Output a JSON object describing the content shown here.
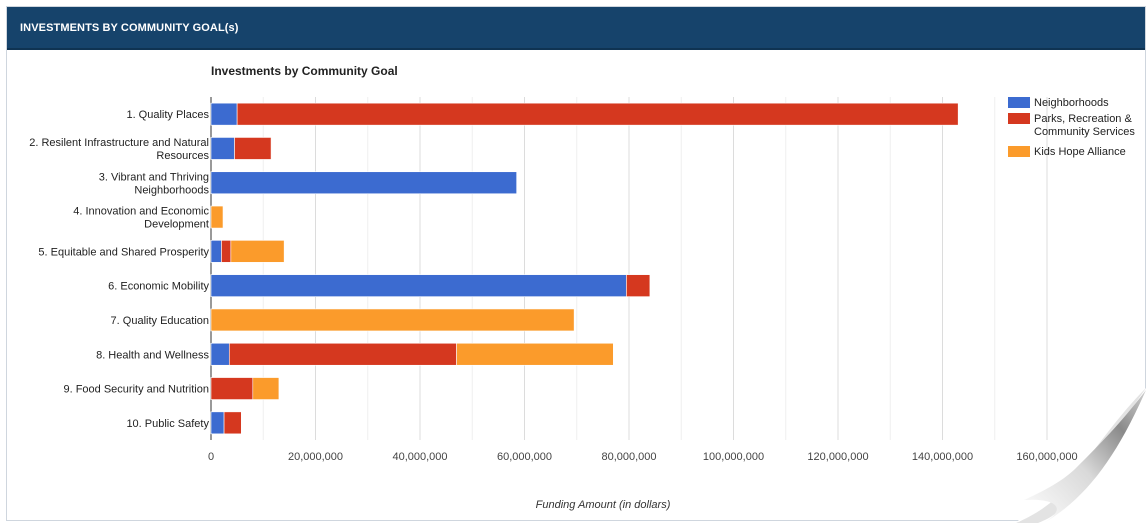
{
  "panel": {
    "title": "INVESTMENTS BY COMMUNITY GOAL(s)"
  },
  "chart_data": {
    "type": "bar",
    "orientation": "horizontal",
    "stacked": true,
    "title": "Investments by Community Goal",
    "xlabel": "Funding Amount (in dollars)",
    "ylabel": "",
    "xlim": [
      0,
      160000000
    ],
    "xticks": [
      0,
      20000000,
      40000000,
      60000000,
      80000000,
      100000000,
      120000000,
      140000000,
      160000000
    ],
    "xtick_labels": [
      "0",
      "20,000,000",
      "40,000,000",
      "60,000,000",
      "80,000,000",
      "100,000,000",
      "120,000,000",
      "140,000,000",
      "160,000,000"
    ],
    "grid": true,
    "legend_position": "right",
    "categories": [
      [
        "1. Quality Places"
      ],
      [
        "2. Resilent Infrastructure and Natural",
        "Resources"
      ],
      [
        "3. Vibrant and Thriving",
        "Neighborhoods"
      ],
      [
        "4. Innovation and Economic",
        "Development"
      ],
      [
        "5. Equitable and Shared Prosperity"
      ],
      [
        "6. Economic Mobility"
      ],
      [
        "7. Quality Education"
      ],
      [
        "8. Health and Wellness"
      ],
      [
        "9. Food Security and Nutrition"
      ],
      [
        "10. Public Safety"
      ]
    ],
    "series": [
      {
        "name": "Neighborhoods",
        "legend_lines": [
          "Neighborhoods"
        ],
        "color": "#3c6bd0",
        "values": [
          5000000,
          4500000,
          58500000,
          0,
          2000000,
          79500000,
          0,
          3500000,
          0,
          2500000
        ]
      },
      {
        "name": "Parks, Recreation & Community Services",
        "legend_lines": [
          "Parks, Recreation &",
          "Community Services"
        ],
        "color": "#d5381f",
        "values": [
          138000000,
          7000000,
          0,
          0,
          1800000,
          4500000,
          0,
          43500000,
          8000000,
          3300000
        ]
      },
      {
        "name": "Kids Hope Alliance",
        "legend_lines": [
          "Kids Hope Alliance"
        ],
        "color": "#fb9b2b",
        "values": [
          0,
          0,
          0,
          2300000,
          10200000,
          0,
          69500000,
          30000000,
          5000000,
          0
        ]
      }
    ]
  }
}
